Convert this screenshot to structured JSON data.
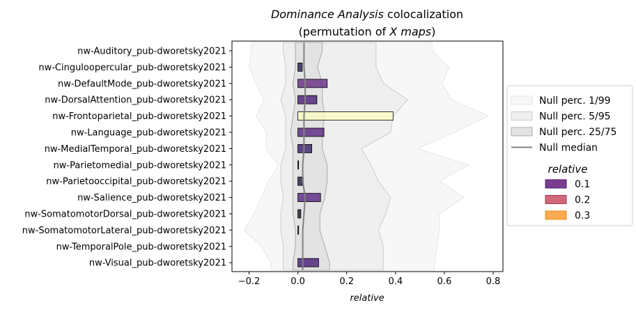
{
  "chart_data": {
    "type": "bar",
    "orientation": "horizontal",
    "title_line1_italic": "Dominance Analysis",
    "title_line1_rest": " colocalization",
    "title_line2_prefix": "(permutation of ",
    "title_line2_italic": "X maps",
    "title_line2_suffix": ")",
    "xlabel": "relative",
    "ylabel": "",
    "xlim": [
      -0.27,
      0.84
    ],
    "xticks": [
      -0.2,
      0.0,
      0.2,
      0.4,
      0.6,
      0.8
    ],
    "xtick_labels": [
      "−0.2",
      "0.0",
      "0.2",
      "0.4",
      "0.6",
      "0.8"
    ],
    "categories": [
      "nw-Auditory_pub-dworetsky2021",
      "nw-Cinguloopercular_pub-dworetsky2021",
      "nw-DefaultMode_pub-dworetsky2021",
      "nw-DorsalAttention_pub-dworetsky2021",
      "nw-Frontoparietal_pub-dworetsky2021",
      "nw-Language_pub-dworetsky2021",
      "nw-MedialTemporal_pub-dworetsky2021",
      "nw-Parietomedial_pub-dworetsky2021",
      "nw-Parietooccipital_pub-dworetsky2021",
      "nw-Salience_pub-dworetsky2021",
      "nw-SomatomotorDorsal_pub-dworetsky2021",
      "nw-SomatomotorLateral_pub-dworetsky2021",
      "nw-TemporalPole_pub-dworetsky2021",
      "nw-Visual_pub-dworetsky2021"
    ],
    "values": [
      0.0,
      0.018,
      0.12,
      0.078,
      0.39,
      0.107,
      0.057,
      0.003,
      0.022,
      0.093,
      0.012,
      0.003,
      0.0,
      0.085
    ],
    "bar_colors": [
      "#000004",
      "#1c1044",
      "#5e1e7b",
      "#3f1070",
      "#fcfdbf",
      "#4f1a7a",
      "#2d1160",
      "#000004",
      "#170f3c",
      "#4d1879",
      "#0d0a2a",
      "#000004",
      "#000004",
      "#3b0f6f"
    ],
    "null_bands": {
      "p1": [
        -0.19,
        -0.2,
        -0.17,
        -0.14,
        -0.17,
        -0.13,
        -0.13,
        -0.08,
        -0.12,
        -0.15,
        -0.18,
        -0.22,
        -0.15,
        -0.11
      ],
      "p5": [
        -0.06,
        -0.05,
        -0.05,
        -0.07,
        -0.05,
        -0.05,
        -0.05,
        -0.07,
        -0.07,
        -0.06,
        -0.07,
        -0.07,
        -0.06,
        -0.06
      ],
      "p25": [
        -0.01,
        -0.01,
        -0.02,
        -0.01,
        -0.02,
        -0.03,
        -0.02,
        -0.02,
        -0.02,
        -0.02,
        -0.02,
        -0.01,
        -0.01,
        -0.02
      ],
      "median": [
        0.025,
        0.025,
        0.03,
        0.03,
        0.025,
        0.025,
        0.025,
        0.02,
        0.02,
        0.03,
        0.025,
        0.02,
        0.02,
        0.02
      ],
      "p75": [
        0.1,
        0.08,
        0.1,
        0.1,
        0.11,
        0.1,
        0.1,
        0.12,
        0.12,
        0.11,
        0.09,
        0.09,
        0.11,
        0.13
      ],
      "p95": [
        0.32,
        0.32,
        0.35,
        0.45,
        0.39,
        0.38,
        0.26,
        0.3,
        0.33,
        0.38,
        0.36,
        0.33,
        0.35,
        0.35
      ],
      "p99": [
        0.55,
        0.62,
        0.59,
        0.63,
        0.78,
        0.64,
        0.49,
        0.7,
        0.58,
        0.68,
        0.58,
        0.58,
        0.57,
        0.56
      ]
    },
    "legend": {
      "placement": "right",
      "entries": [
        {
          "label": "Null perc. 1/99",
          "kind": "band",
          "color": "#f7f7f7",
          "edge": "#e6e6e6"
        },
        {
          "label": "Null perc. 5/95",
          "kind": "band",
          "color": "#efefef",
          "edge": "#cccccc"
        },
        {
          "label": "Null perc. 25/75",
          "kind": "band",
          "color": "#e3e3e3",
          "edge": "#aaaaaa"
        },
        {
          "label": "Null median",
          "kind": "line",
          "color": "#808080"
        }
      ],
      "colorbar_title": "relative",
      "color_entries": [
        {
          "label": "0.1",
          "color": "#7b3d8f",
          "edge": "#4c1d6b"
        },
        {
          "label": "0.2",
          "color": "#d06a7b",
          "edge": "#a3364c"
        },
        {
          "label": "0.3",
          "color": "#fcaa4f",
          "edge": "#e68a17"
        }
      ]
    },
    "grid": false
  }
}
